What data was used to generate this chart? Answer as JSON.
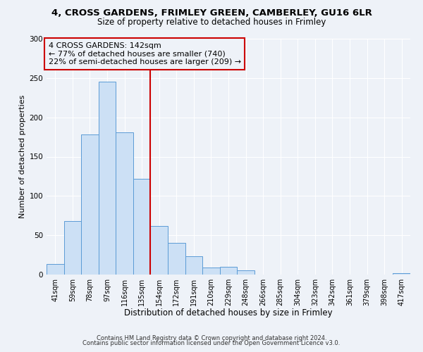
{
  "title1": "4, CROSS GARDENS, FRIMLEY GREEN, CAMBERLEY, GU16 6LR",
  "title2": "Size of property relative to detached houses in Frimley",
  "xlabel": "Distribution of detached houses by size in Frimley",
  "ylabel": "Number of detached properties",
  "bin_labels": [
    "41sqm",
    "59sqm",
    "78sqm",
    "97sqm",
    "116sqm",
    "135sqm",
    "154sqm",
    "172sqm",
    "191sqm",
    "210sqm",
    "229sqm",
    "248sqm",
    "266sqm",
    "285sqm",
    "304sqm",
    "323sqm",
    "342sqm",
    "361sqm",
    "379sqm",
    "398sqm",
    "417sqm"
  ],
  "bar_values": [
    13,
    68,
    178,
    245,
    181,
    122,
    62,
    40,
    23,
    9,
    10,
    5,
    0,
    0,
    0,
    0,
    0,
    0,
    0,
    0,
    2
  ],
  "bar_color": "#cce0f5",
  "bar_edge_color": "#5b9bd5",
  "vline_x": 5.5,
  "vline_color": "#cc0000",
  "ylim": [
    0,
    300
  ],
  "yticks": [
    0,
    50,
    100,
    150,
    200,
    250,
    300
  ],
  "annotation_title": "4 CROSS GARDENS: 142sqm",
  "annotation_line1": "← 77% of detached houses are smaller (740)",
  "annotation_line2": "22% of semi-detached houses are larger (209) →",
  "annotation_box_color": "#cc0000",
  "footer1": "Contains HM Land Registry data © Crown copyright and database right 2024.",
  "footer2": "Contains public sector information licensed under the Open Government Licence v3.0.",
  "background_color": "#eef2f8",
  "grid_color": "#ffffff",
  "title1_fontsize": 9.5,
  "title2_fontsize": 8.5,
  "xlabel_fontsize": 8.5,
  "ylabel_fontsize": 8.0,
  "annotation_fontsize": 8.0,
  "footer_fontsize": 6.0
}
